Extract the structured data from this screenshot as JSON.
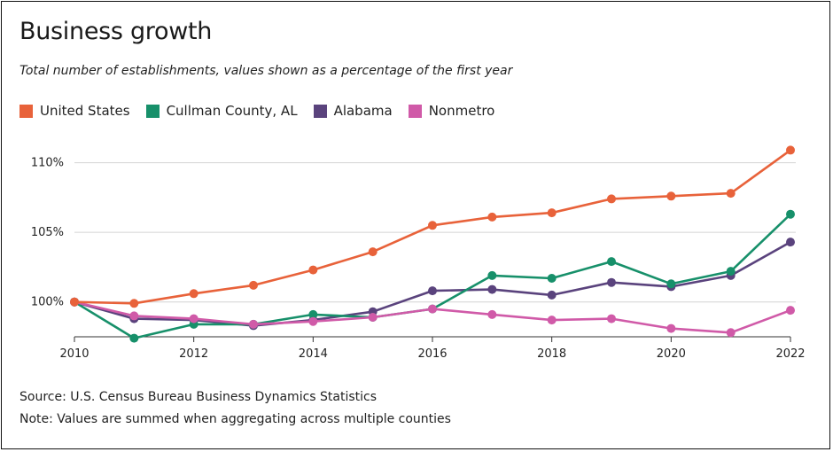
{
  "title": "Business growth",
  "subtitle": "Total number of establishments, values shown as a percentage of the first year",
  "source": "Source: U.S. Census Bureau Business Dynamics Statistics",
  "note": "Note: Values are summed when aggregating across multiple counties",
  "chart_data": {
    "type": "line",
    "x": [
      2010,
      2011,
      2012,
      2013,
      2014,
      2015,
      2016,
      2017,
      2018,
      2019,
      2020,
      2021,
      2022
    ],
    "x_ticks": [
      "2010",
      "2012",
      "2014",
      "2016",
      "2018",
      "2020",
      "2022"
    ],
    "y_ticks": [
      {
        "value": 100,
        "label": "100%"
      },
      {
        "value": 105,
        "label": "105%"
      },
      {
        "value": 110,
        "label": "110%"
      }
    ],
    "ylim": [
      97.5,
      111.5
    ],
    "xlim": [
      2010,
      2022
    ],
    "legend_position": "top-left",
    "series": [
      {
        "name": "United States",
        "color": "#e8623a",
        "values": [
          100.0,
          99.9,
          100.6,
          101.2,
          102.3,
          103.6,
          105.5,
          106.1,
          106.4,
          107.4,
          107.6,
          107.8,
          110.9
        ]
      },
      {
        "name": "Cullman County, AL",
        "color": "#17906a",
        "values": [
          100.0,
          97.4,
          98.4,
          98.4,
          99.1,
          98.9,
          99.5,
          101.9,
          101.7,
          102.9,
          101.3,
          102.2,
          106.3
        ]
      },
      {
        "name": "Alabama",
        "color": "#5a437d",
        "values": [
          100.0,
          98.8,
          98.7,
          98.3,
          98.7,
          99.3,
          100.8,
          100.9,
          100.5,
          101.4,
          101.1,
          101.9,
          104.3
        ]
      },
      {
        "name": "Nonmetro",
        "color": "#d05aa8",
        "values": [
          100.0,
          99.0,
          98.8,
          98.4,
          98.6,
          98.9,
          99.5,
          99.1,
          98.7,
          98.8,
          98.1,
          97.8,
          99.4
        ]
      }
    ]
  }
}
